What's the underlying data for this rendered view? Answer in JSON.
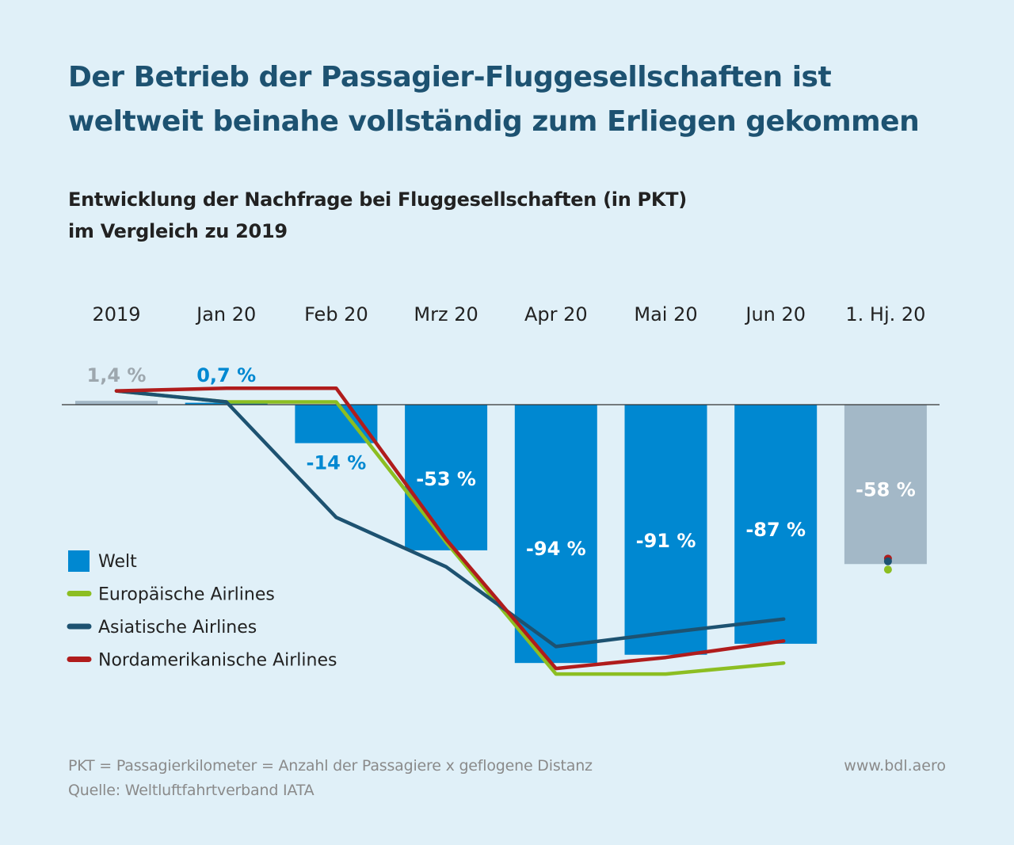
{
  "header": {
    "title_line1": "Der Betrieb der Passagier-Fluggesellschaften ist",
    "title_line2": "weltweit beinahe vollständig zum Erliegen gekommen",
    "subtitle_line1": "Entwicklung der Nachfrage bei Fluggesellschaften (in PKT)",
    "subtitle_line2": "im Vergleich zu 2019"
  },
  "colors": {
    "title": "#1d5271",
    "welt": "#0088d1",
    "grey_bar": "#a3b8c7",
    "grey_label": "#9da7ae",
    "europe": "#8cbe22",
    "asia": "#1d5271",
    "north_america": "#b01c1c"
  },
  "chart_data": {
    "type": "bar",
    "categories": [
      "2019",
      "Jan 20",
      "Feb 20",
      "Mrz 20",
      "Apr 20",
      "Mai 20",
      "Jun 20",
      "1. Hj. 20"
    ],
    "series": [
      {
        "name": "Welt",
        "type": "bar",
        "values": [
          1.4,
          0.7,
          -14,
          -53,
          -94,
          -91,
          -87,
          -58
        ],
        "labels": [
          "1,4 %",
          "0,7 %",
          "-14 %",
          "-53 %",
          "-94 %",
          "-91 %",
          "-87 %",
          "-58 %"
        ]
      },
      {
        "name": "Europäische Airlines",
        "type": "line",
        "values": [
          5,
          1,
          1,
          -50,
          -98,
          -98,
          -94,
          -60
        ]
      },
      {
        "name": "Asiatische Airlines",
        "type": "line",
        "values": [
          5,
          1,
          -41,
          -59,
          -88,
          -83,
          -78,
          -57
        ]
      },
      {
        "name": "Nordamerikanische Airlines",
        "type": "line",
        "values": [
          5,
          6,
          6,
          -49,
          -96,
          -92,
          -86,
          -56
        ]
      }
    ],
    "highlight_colors": [
      "grey",
      "blue",
      "blue",
      "blue",
      "blue",
      "blue",
      "blue",
      "grey"
    ],
    "ylim": [
      -100,
      10
    ],
    "legend_position": "left-middle"
  },
  "footer": {
    "note": "PKT = Passagierkilometer = Anzahl der Passagiere x geflogene Distanz",
    "source": "Quelle: Weltluftfahrtverband IATA",
    "website": "www.bdl.aero"
  }
}
